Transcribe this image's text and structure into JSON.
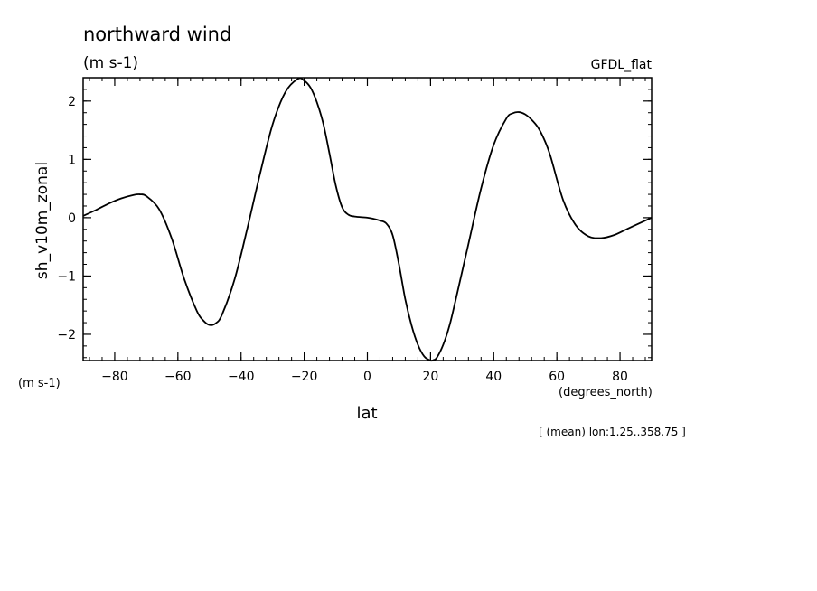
{
  "chart_data": {
    "type": "line",
    "title": "northward wind",
    "subtitle": "(m s-1)",
    "source_label": "GFDL_flat",
    "xlabel": "lat",
    "xunit": "(degrees_north)",
    "ylabel": "sh_v10m_zonal",
    "yunit": "(m s-1)",
    "footnote": "[ (mean) lon:1.25..358.75 ]",
    "xlim": [
      -90,
      90
    ],
    "ylim": [
      -2.45,
      2.4
    ],
    "xticks": [
      -80,
      -60,
      -40,
      -20,
      0,
      20,
      40,
      60,
      80
    ],
    "xtick_labels": [
      "−80",
      "−60",
      "−40",
      "−20",
      "0",
      "20",
      "40",
      "60",
      "80"
    ],
    "yticks": [
      -2,
      -1,
      0,
      1,
      2
    ],
    "ytick_labels": [
      "−2",
      "−1",
      "0",
      "1",
      "2"
    ],
    "grid": false,
    "legend": "none",
    "line_color": "#000000",
    "series": [
      {
        "x": [
          -90,
          -86,
          -82,
          -78,
          -74,
          -72,
          -70,
          -66,
          -62,
          -58,
          -54,
          -52,
          -50,
          -48,
          -46,
          -42,
          -38,
          -34,
          -30,
          -26,
          -22,
          -20,
          -18,
          -16,
          -14,
          -12,
          -10,
          -8,
          -6,
          -4,
          0,
          2,
          4,
          6,
          8,
          10,
          12,
          14,
          16,
          18,
          20,
          21,
          22,
          24,
          26,
          28,
          32,
          36,
          40,
          44,
          46,
          48,
          50,
          52,
          54,
          56,
          58,
          62,
          66,
          70,
          74,
          78,
          82,
          86,
          90
        ],
        "y": [
          0.03,
          0.13,
          0.24,
          0.33,
          0.39,
          0.4,
          0.37,
          0.15,
          -0.35,
          -1.05,
          -1.6,
          -1.76,
          -1.84,
          -1.81,
          -1.66,
          -1.05,
          -0.18,
          0.75,
          1.6,
          2.15,
          2.38,
          2.35,
          2.23,
          1.98,
          1.62,
          1.1,
          0.55,
          0.18,
          0.05,
          0.02,
          0.0,
          -0.02,
          -0.05,
          -0.1,
          -0.3,
          -0.8,
          -1.4,
          -1.85,
          -2.18,
          -2.38,
          -2.45,
          -2.44,
          -2.4,
          -2.18,
          -1.85,
          -1.4,
          -0.45,
          0.5,
          1.25,
          1.7,
          1.79,
          1.81,
          1.77,
          1.68,
          1.55,
          1.34,
          1.05,
          0.3,
          -0.13,
          -0.32,
          -0.35,
          -0.3,
          -0.2,
          -0.1,
          0.0
        ]
      }
    ]
  }
}
